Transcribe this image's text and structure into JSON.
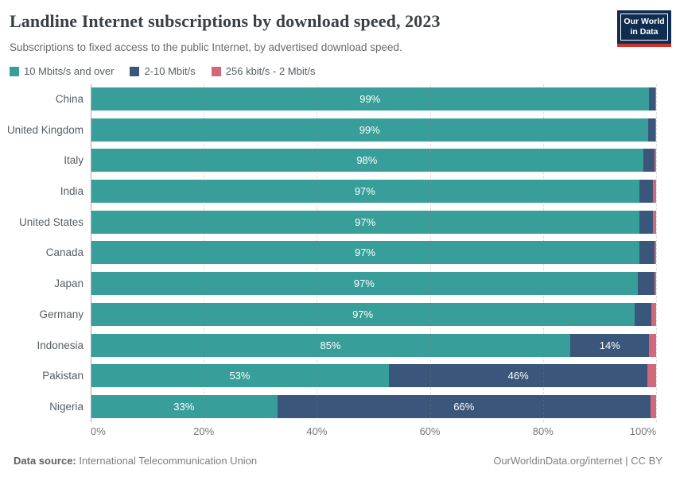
{
  "header": {
    "title": "Landline Internet subscriptions by download speed, 2023",
    "subtitle": "Subscriptions to fixed access to the public Internet, by advertised download speed."
  },
  "logo": {
    "line1": "Our World",
    "line2": "in Data",
    "bg_color": "#102d50",
    "accent_color": "#d0342c"
  },
  "chart_data": {
    "type": "bar",
    "variant": "horizontal-stacked-relative",
    "title": "Landline Internet subscriptions by download speed, 2023",
    "unit": "%",
    "categories": [
      "China",
      "United Kingdom",
      "Italy",
      "India",
      "United States",
      "Canada",
      "Japan",
      "Germany",
      "Indonesia",
      "Pakistan",
      "Nigeria"
    ],
    "series": [
      {
        "name": "10 Mbits/s and over",
        "color": "#389e99",
        "values": [
          99,
          99,
          98,
          97,
          97,
          97,
          97,
          97,
          85,
          53,
          33
        ]
      },
      {
        "name": "2-10 Mbit/s",
        "color": "#3a567a",
        "values": [
          1,
          1.2,
          2,
          2.4,
          2.3,
          2.7,
          3,
          3,
          14,
          46,
          66
        ]
      },
      {
        "name": "256 kbit/s - 2 Mbit/s",
        "color": "#d2687a",
        "values": [
          0.2,
          0.15,
          0.3,
          0.6,
          0.6,
          0.25,
          0.3,
          0.8,
          1.2,
          1.5,
          1
        ]
      }
    ],
    "x_ticks": [
      "0%",
      "20%",
      "40%",
      "60%",
      "80%",
      "100%"
    ],
    "xlim": [
      0,
      100
    ],
    "gridlines": "vertical-dashed",
    "legend_position": "top",
    "bar_label_min_percent": 5
  },
  "footer": {
    "source_label": "Data source:",
    "source_value": " International Telecommunication Union",
    "right_text": "OurWorldinData.org/internet | CC BY"
  }
}
